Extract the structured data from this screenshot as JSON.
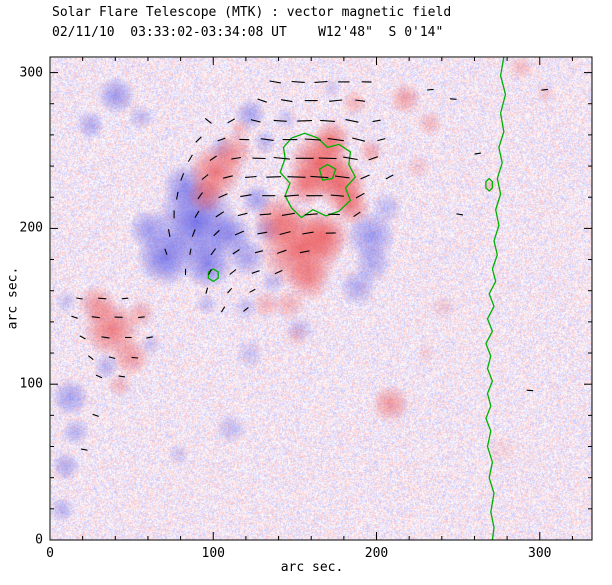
{
  "chart_data": {
    "type": "heatmap",
    "title": "Solar Flare Telescope (MTK) : vector magnetic field",
    "subtitle": "02/11/10  03:33:02-03:34:08 UT    W12'48\"  S 0'14\"",
    "xlabel": "arc sec.",
    "ylabel": "arc sec.",
    "xlim": [
      0,
      332
    ],
    "ylim": [
      0,
      310
    ],
    "x_ticks": [
      0,
      100,
      200,
      300
    ],
    "y_ticks": [
      0,
      100,
      200,
      300
    ],
    "minor_tick_step": 20,
    "grid": false,
    "legend": "none",
    "colors": {
      "positive": "#eb3c3c",
      "negative": "#5050e6",
      "contour": "#00b000",
      "vector": "#000000",
      "background": "#ffffff",
      "axis": "#000000"
    },
    "blobs": [
      [
        40,
        286,
        12,
        -1,
        0.5
      ],
      [
        24,
        267,
        9,
        -1,
        0.4
      ],
      [
        55,
        272,
        8,
        -1,
        0.3
      ],
      [
        122,
        274,
        10,
        -1,
        0.45
      ],
      [
        104,
        252,
        8,
        -1,
        0.3
      ],
      [
        89,
        205,
        26,
        -1,
        0.75
      ],
      [
        70,
        182,
        18,
        -1,
        0.7
      ],
      [
        96,
        178,
        16,
        -1,
        0.65
      ],
      [
        110,
        196,
        14,
        -1,
        0.55
      ],
      [
        82,
        228,
        14,
        -1,
        0.55
      ],
      [
        60,
        200,
        13,
        -1,
        0.5
      ],
      [
        120,
        182,
        12,
        -1,
        0.45
      ],
      [
        126,
        219,
        10,
        -1,
        0.45
      ],
      [
        132,
        200,
        9,
        -1,
        0.35
      ],
      [
        196,
        196,
        16,
        -1,
        0.5
      ],
      [
        188,
        163,
        12,
        -1,
        0.4
      ],
      [
        206,
        214,
        10,
        -1,
        0.3
      ],
      [
        197,
        178,
        12,
        -1,
        0.4
      ],
      [
        12,
        92,
        12,
        -1,
        0.45
      ],
      [
        9,
        48,
        9,
        -1,
        0.4
      ],
      [
        7,
        20,
        8,
        -1,
        0.35
      ],
      [
        15,
        70,
        9,
        -1,
        0.35
      ],
      [
        34,
        112,
        8,
        -1,
        0.35
      ],
      [
        61,
        126,
        7,
        -1,
        0.25
      ],
      [
        110,
        72,
        10,
        -1,
        0.28
      ],
      [
        78,
        56,
        7,
        -1,
        0.22
      ],
      [
        153,
        136,
        9,
        -1,
        0.25
      ],
      [
        9,
        154,
        7,
        -1,
        0.25
      ],
      [
        131,
        256,
        8,
        -1,
        0.3
      ],
      [
        144,
        271,
        7,
        -1,
        0.25
      ],
      [
        172,
        291,
        6,
        -1,
        0.2
      ],
      [
        119,
        150,
        8,
        -1,
        0.25
      ],
      [
        136,
        166,
        8,
        -1,
        0.3
      ],
      [
        122,
        120,
        9,
        -1,
        0.25
      ],
      [
        95,
        152,
        7,
        -1,
        0.3
      ],
      [
        101,
        237,
        17,
        1,
        0.65
      ],
      [
        95,
        222,
        12,
        1,
        0.5
      ],
      [
        112,
        250,
        12,
        1,
        0.45
      ],
      [
        153,
        188,
        26,
        1,
        0.7
      ],
      [
        140,
        206,
        16,
        1,
        0.55
      ],
      [
        168,
        196,
        16,
        1,
        0.55
      ],
      [
        158,
        168,
        14,
        1,
        0.45
      ],
      [
        146,
        152,
        10,
        1,
        0.3
      ],
      [
        165,
        242,
        20,
        1,
        0.75
      ],
      [
        178,
        228,
        16,
        1,
        0.7
      ],
      [
        184,
        215,
        12,
        1,
        0.55
      ],
      [
        172,
        258,
        12,
        1,
        0.55
      ],
      [
        156,
        228,
        13,
        1,
        0.55
      ],
      [
        37,
        136,
        18,
        1,
        0.6
      ],
      [
        28,
        152,
        12,
        1,
        0.45
      ],
      [
        49,
        118,
        12,
        1,
        0.45
      ],
      [
        42,
        100,
        8,
        1,
        0.28
      ],
      [
        55,
        146,
        9,
        1,
        0.35
      ],
      [
        208,
        88,
        12,
        1,
        0.45
      ],
      [
        217,
        284,
        10,
        1,
        0.4
      ],
      [
        232,
        268,
        8,
        1,
        0.28
      ],
      [
        116,
        264,
        7,
        1,
        0.25
      ],
      [
        132,
        152,
        9,
        1,
        0.3
      ],
      [
        288,
        304,
        8,
        1,
        0.25
      ],
      [
        303,
        287,
        6,
        1,
        0.2
      ],
      [
        269,
        228,
        4,
        1,
        0.3
      ],
      [
        276,
        58,
        10,
        1,
        0.12
      ],
      [
        240,
        150,
        8,
        1,
        0.16
      ],
      [
        225,
        240,
        8,
        1,
        0.2
      ],
      [
        186,
        281,
        8,
        1,
        0.3
      ],
      [
        196,
        250,
        8,
        1,
        0.35
      ],
      [
        230,
        120,
        6,
        1,
        0.15
      ],
      [
        150,
        132,
        8,
        1,
        0.2
      ]
    ],
    "vectors": [
      [
        138,
        294,
        170,
        7
      ],
      [
        152,
        294,
        176,
        8
      ],
      [
        166,
        294,
        4,
        8
      ],
      [
        180,
        294,
        0,
        7
      ],
      [
        194,
        294,
        178,
        6
      ],
      [
        130,
        282,
        160,
        6
      ],
      [
        145,
        282,
        170,
        7
      ],
      [
        160,
        282,
        180,
        8
      ],
      [
        175,
        282,
        6,
        8
      ],
      [
        190,
        282,
        172,
        6
      ],
      [
        97,
        269,
        140,
        5
      ],
      [
        111,
        269,
        30,
        5
      ],
      [
        126,
        269,
        166,
        6
      ],
      [
        141,
        269,
        176,
        8
      ],
      [
        156,
        269,
        182,
        9
      ],
      [
        170,
        269,
        176,
        9
      ],
      [
        185,
        269,
        168,
        8
      ],
      [
        200,
        269,
        10,
        5
      ],
      [
        91,
        257,
        45,
        5
      ],
      [
        105,
        257,
        20,
        5
      ],
      [
        119,
        257,
        178,
        6
      ],
      [
        133,
        257,
        172,
        8
      ],
      [
        147,
        257,
        180,
        9
      ],
      [
        161,
        257,
        176,
        10
      ],
      [
        175,
        257,
        172,
        10
      ],
      [
        189,
        257,
        165,
        8
      ],
      [
        203,
        257,
        15,
        5
      ],
      [
        86,
        245,
        60,
        5
      ],
      [
        100,
        245,
        35,
        5
      ],
      [
        114,
        245,
        10,
        6
      ],
      [
        128,
        245,
        178,
        8
      ],
      [
        142,
        245,
        174,
        10
      ],
      [
        156,
        245,
        180,
        11
      ],
      [
        170,
        245,
        178,
        11
      ],
      [
        184,
        245,
        170,
        9
      ],
      [
        198,
        245,
        20,
        6
      ],
      [
        81,
        233,
        70,
        5
      ],
      [
        95,
        233,
        40,
        5
      ],
      [
        109,
        233,
        15,
        6
      ],
      [
        123,
        233,
        5,
        7
      ],
      [
        137,
        233,
        182,
        9
      ],
      [
        151,
        233,
        178,
        11
      ],
      [
        165,
        233,
        176,
        11
      ],
      [
        179,
        233,
        172,
        9
      ],
      [
        193,
        233,
        25,
        6
      ],
      [
        208,
        233,
        30,
        5
      ],
      [
        78,
        221,
        80,
        5
      ],
      [
        92,
        221,
        55,
        5
      ],
      [
        106,
        221,
        25,
        6
      ],
      [
        120,
        221,
        10,
        7
      ],
      [
        134,
        221,
        0,
        8
      ],
      [
        148,
        221,
        185,
        9
      ],
      [
        162,
        221,
        180,
        10
      ],
      [
        176,
        221,
        175,
        8
      ],
      [
        190,
        221,
        30,
        6
      ],
      [
        76,
        209,
        90,
        5
      ],
      [
        90,
        209,
        60,
        5
      ],
      [
        104,
        209,
        35,
        6
      ],
      [
        118,
        209,
        15,
        6
      ],
      [
        132,
        209,
        5,
        7
      ],
      [
        146,
        209,
        190,
        8
      ],
      [
        160,
        209,
        185,
        8
      ],
      [
        174,
        209,
        178,
        7
      ],
      [
        188,
        209,
        35,
        5
      ],
      [
        73,
        197,
        100,
        5
      ],
      [
        88,
        197,
        70,
        5
      ],
      [
        102,
        197,
        45,
        5
      ],
      [
        116,
        197,
        25,
        6
      ],
      [
        130,
        197,
        10,
        6
      ],
      [
        144,
        197,
        195,
        7
      ],
      [
        158,
        197,
        190,
        7
      ],
      [
        172,
        197,
        182,
        6
      ],
      [
        71,
        185,
        110,
        4
      ],
      [
        86,
        185,
        80,
        4
      ],
      [
        100,
        185,
        55,
        5
      ],
      [
        114,
        185,
        35,
        5
      ],
      [
        128,
        185,
        15,
        5
      ],
      [
        142,
        185,
        200,
        6
      ],
      [
        156,
        185,
        192,
        6
      ],
      [
        83,
        172,
        90,
        4
      ],
      [
        98,
        172,
        65,
        4
      ],
      [
        112,
        172,
        40,
        5
      ],
      [
        126,
        172,
        20,
        5
      ],
      [
        140,
        172,
        205,
        5
      ],
      [
        96,
        160,
        75,
        4
      ],
      [
        110,
        160,
        50,
        4
      ],
      [
        124,
        160,
        30,
        4
      ],
      [
        106,
        148,
        60,
        4
      ],
      [
        120,
        148,
        40,
        4
      ],
      [
        18,
        155,
        170,
        4
      ],
      [
        32,
        155,
        175,
        5
      ],
      [
        46,
        155,
        5,
        4
      ],
      [
        15,
        143,
        160,
        4
      ],
      [
        28,
        143,
        172,
        5
      ],
      [
        42,
        143,
        178,
        5
      ],
      [
        56,
        143,
        8,
        4
      ],
      [
        20,
        130,
        150,
        4
      ],
      [
        34,
        130,
        170,
        5
      ],
      [
        48,
        130,
        180,
        4
      ],
      [
        61,
        130,
        12,
        4
      ],
      [
        25,
        117,
        140,
        4
      ],
      [
        38,
        117,
        165,
        4
      ],
      [
        52,
        117,
        175,
        4
      ],
      [
        30,
        105,
        155,
        4
      ],
      [
        44,
        105,
        170,
        4
      ],
      [
        233,
        289,
        5,
        4
      ],
      [
        247,
        283,
        175,
        4
      ],
      [
        303,
        289,
        8,
        4
      ],
      [
        294,
        96,
        175,
        4
      ],
      [
        251,
        209,
        170,
        4
      ],
      [
        28,
        80,
        160,
        4
      ],
      [
        21,
        58,
        170,
        4
      ],
      [
        262,
        248,
        10,
        4
      ]
    ],
    "contours": {
      "limb": [
        [
          278,
          310
        ],
        [
          276,
          298
        ],
        [
          279,
          286
        ],
        [
          276,
          274
        ],
        [
          278,
          262
        ],
        [
          275,
          252
        ],
        [
          277,
          242
        ],
        [
          274,
          232
        ],
        [
          276,
          222
        ],
        [
          273,
          212
        ],
        [
          275,
          202
        ],
        [
          272,
          192
        ],
        [
          274,
          183
        ],
        [
          271,
          174
        ],
        [
          273,
          166
        ],
        [
          269,
          158
        ],
        [
          272,
          150
        ],
        [
          268,
          142
        ],
        [
          271,
          134
        ],
        [
          267,
          126
        ],
        [
          270,
          118
        ],
        [
          268,
          110
        ],
        [
          271,
          102
        ],
        [
          268,
          94
        ],
        [
          270,
          86
        ],
        [
          267,
          78
        ],
        [
          270,
          70
        ],
        [
          268,
          60
        ],
        [
          271,
          50
        ],
        [
          269,
          40
        ],
        [
          272,
          30
        ],
        [
          270,
          18
        ],
        [
          272,
          8
        ],
        [
          271,
          0
        ]
      ],
      "loops": [
        [
          [
            143,
            252
          ],
          [
            148,
            258
          ],
          [
            156,
            261
          ],
          [
            164,
            258
          ],
          [
            170,
            252
          ],
          [
            177,
            254
          ],
          [
            184,
            249
          ],
          [
            183,
            241
          ],
          [
            187,
            233
          ],
          [
            181,
            226
          ],
          [
            184,
            218
          ],
          [
            177,
            211
          ],
          [
            169,
            208
          ],
          [
            161,
            212
          ],
          [
            154,
            207
          ],
          [
            148,
            213
          ],
          [
            144,
            221
          ],
          [
            147,
            229
          ],
          [
            141,
            236
          ],
          [
            144,
            245
          ]
        ],
        [
          [
            165,
            238
          ],
          [
            170,
            241
          ],
          [
            175,
            238
          ],
          [
            173,
            232
          ],
          [
            167,
            231
          ]
        ],
        [
          [
            97,
            172
          ],
          [
            100,
            174
          ],
          [
            103,
            172
          ],
          [
            103,
            168
          ],
          [
            100,
            166
          ],
          [
            97,
            168
          ]
        ],
        [
          [
            267,
            230
          ],
          [
            269,
            232
          ],
          [
            271,
            230
          ],
          [
            271,
            226
          ],
          [
            269,
            224
          ],
          [
            267,
            226
          ]
        ]
      ]
    }
  }
}
